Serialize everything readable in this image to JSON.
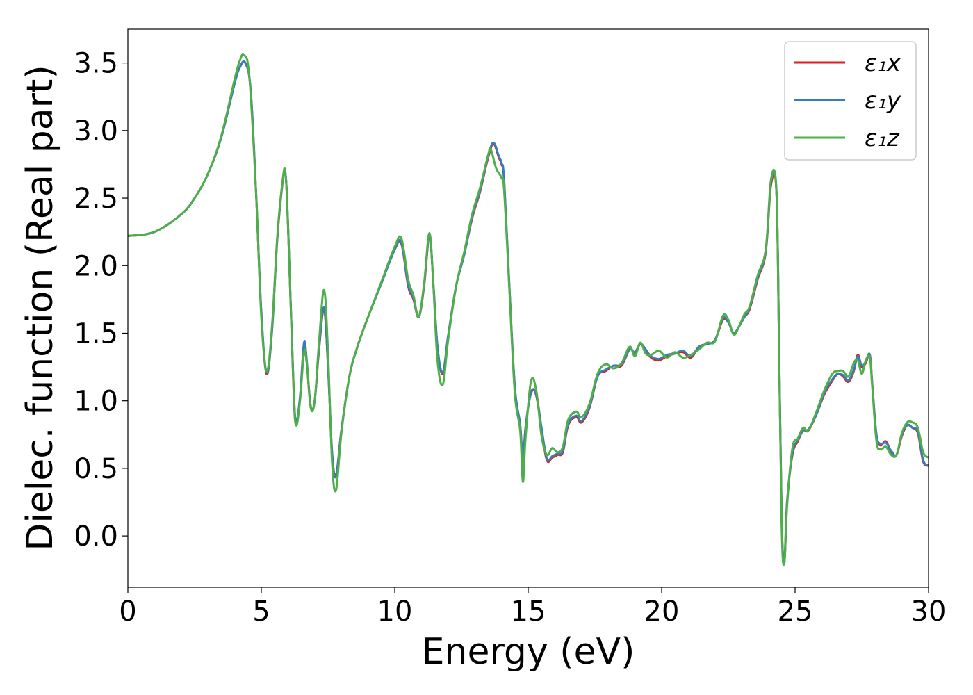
{
  "chart_data": {
    "type": "line",
    "title": "",
    "xlabel": "Energy (eV)",
    "ylabel": "Dielec. function (Real part)",
    "xlim": [
      0,
      30
    ],
    "ylim": [
      -0.38,
      3.75
    ],
    "xticks": [
      0,
      5,
      10,
      15,
      20,
      25,
      30
    ],
    "xtick_labels": [
      "0",
      "5",
      "10",
      "15",
      "20",
      "25",
      "30"
    ],
    "yticks": [
      0.0,
      0.5,
      1.0,
      1.5,
      2.0,
      2.5,
      3.0,
      3.5
    ],
    "ytick_labels": [
      "0.0",
      "0.5",
      "1.0",
      "1.5",
      "2.0",
      "2.5",
      "3.0",
      "3.5"
    ],
    "grid": false,
    "legend_position": "top-right",
    "series": [
      {
        "name": "ε₁x",
        "color": "#e41a1c",
        "x": [
          0,
          1,
          2,
          2.5,
          3,
          3.5,
          4,
          4.2,
          4.4,
          4.6,
          4.8,
          5.0,
          5.2,
          5.4,
          5.6,
          5.8,
          5.9,
          6.0,
          6.2,
          6.3,
          6.45,
          6.6,
          6.7,
          6.85,
          7.0,
          7.15,
          7.35,
          7.5,
          7.65,
          7.8,
          8.0,
          8.3,
          8.6,
          9.0,
          9.5,
          10.0,
          10.25,
          10.5,
          10.7,
          10.9,
          11.1,
          11.3,
          11.45,
          11.6,
          11.8,
          12.0,
          12.3,
          12.6,
          12.9,
          13.2,
          13.5,
          13.7,
          13.9,
          14.0,
          14.1,
          14.3,
          14.5,
          14.7,
          14.8,
          14.9,
          15.1,
          15.3,
          15.5,
          15.7,
          15.9,
          16.1,
          16.3,
          16.5,
          16.8,
          17.0,
          17.3,
          17.6,
          17.9,
          18.2,
          18.5,
          18.8,
          19.0,
          19.2,
          19.4,
          19.6,
          19.9,
          20.2,
          20.5,
          20.8,
          21.1,
          21.4,
          21.7,
          22.0,
          22.3,
          22.5,
          22.7,
          22.9,
          23.1,
          23.3,
          23.6,
          23.9,
          24.1,
          24.3,
          24.4,
          24.5,
          24.6,
          24.7,
          24.9,
          25.1,
          25.3,
          25.5,
          25.8,
          26.1,
          26.4,
          26.6,
          26.8,
          27.0,
          27.2,
          27.35,
          27.5,
          27.65,
          27.8,
          27.9,
          28.05,
          28.2,
          28.4,
          28.6,
          28.8,
          29.0,
          29.2,
          29.4,
          29.6,
          29.8,
          30.0
        ],
        "y": [
          2.22,
          2.25,
          2.38,
          2.5,
          2.68,
          2.95,
          3.35,
          3.47,
          3.5,
          3.3,
          2.55,
          1.65,
          1.2,
          1.52,
          2.2,
          2.62,
          2.69,
          2.3,
          1.15,
          0.84,
          1.02,
          1.42,
          1.3,
          0.96,
          1.0,
          1.35,
          1.68,
          1.25,
          0.62,
          0.45,
          0.78,
          1.18,
          1.4,
          1.62,
          1.87,
          2.12,
          2.16,
          1.85,
          1.75,
          1.62,
          1.85,
          2.22,
          1.85,
          1.4,
          1.2,
          1.48,
          1.85,
          2.08,
          2.35,
          2.55,
          2.8,
          2.9,
          2.8,
          2.75,
          2.62,
          1.82,
          1.1,
          0.82,
          0.55,
          0.8,
          1.06,
          1.04,
          0.78,
          0.56,
          0.58,
          0.6,
          0.62,
          0.82,
          0.88,
          0.84,
          0.95,
          1.18,
          1.22,
          1.26,
          1.26,
          1.38,
          1.35,
          1.42,
          1.38,
          1.32,
          1.3,
          1.33,
          1.35,
          1.36,
          1.32,
          1.4,
          1.42,
          1.45,
          1.6,
          1.58,
          1.5,
          1.55,
          1.62,
          1.68,
          1.9,
          2.1,
          2.6,
          2.55,
          1.4,
          0.1,
          -0.18,
          0.25,
          0.6,
          0.7,
          0.78,
          0.78,
          0.9,
          1.05,
          1.15,
          1.2,
          1.18,
          1.14,
          1.22,
          1.34,
          1.25,
          1.28,
          1.34,
          1.1,
          0.74,
          0.67,
          0.7,
          0.62,
          0.6,
          0.74,
          0.82,
          0.8,
          0.76,
          0.55,
          0.52
        ]
      },
      {
        "name": "ε₁y",
        "color": "#377eb8",
        "x": [
          0,
          1,
          2,
          2.5,
          3,
          3.5,
          4,
          4.2,
          4.4,
          4.6,
          4.8,
          5.0,
          5.2,
          5.4,
          5.6,
          5.8,
          5.9,
          6.0,
          6.2,
          6.3,
          6.45,
          6.6,
          6.7,
          6.85,
          7.0,
          7.15,
          7.35,
          7.5,
          7.65,
          7.8,
          8.0,
          8.3,
          8.6,
          9.0,
          9.5,
          10.0,
          10.25,
          10.5,
          10.7,
          10.9,
          11.1,
          11.3,
          11.45,
          11.6,
          11.8,
          12.0,
          12.3,
          12.6,
          12.9,
          13.2,
          13.5,
          13.7,
          13.9,
          14.0,
          14.1,
          14.3,
          14.5,
          14.7,
          14.8,
          14.9,
          15.1,
          15.3,
          15.5,
          15.7,
          15.9,
          16.1,
          16.3,
          16.5,
          16.8,
          17.0,
          17.3,
          17.6,
          17.9,
          18.2,
          18.5,
          18.8,
          19.0,
          19.2,
          19.4,
          19.6,
          19.9,
          20.2,
          20.5,
          20.8,
          21.1,
          21.4,
          21.7,
          22.0,
          22.3,
          22.5,
          22.7,
          22.9,
          23.1,
          23.3,
          23.6,
          23.9,
          24.1,
          24.3,
          24.4,
          24.5,
          24.6,
          24.7,
          24.9,
          25.1,
          25.3,
          25.5,
          25.8,
          26.1,
          26.4,
          26.6,
          26.8,
          27.0,
          27.2,
          27.35,
          27.5,
          27.65,
          27.8,
          27.9,
          28.05,
          28.2,
          28.4,
          28.6,
          28.8,
          29.0,
          29.2,
          29.4,
          29.6,
          29.8,
          30.0
        ],
        "y": [
          2.22,
          2.25,
          2.38,
          2.5,
          2.68,
          2.95,
          3.35,
          3.47,
          3.5,
          3.3,
          2.56,
          1.66,
          1.21,
          1.52,
          2.21,
          2.63,
          2.69,
          2.31,
          1.15,
          0.85,
          1.03,
          1.43,
          1.3,
          0.96,
          1.0,
          1.36,
          1.69,
          1.25,
          0.62,
          0.44,
          0.78,
          1.18,
          1.4,
          1.62,
          1.87,
          2.12,
          2.17,
          1.86,
          1.76,
          1.62,
          1.86,
          2.22,
          1.86,
          1.4,
          1.21,
          1.48,
          1.85,
          2.08,
          2.36,
          2.56,
          2.81,
          2.91,
          2.81,
          2.76,
          2.63,
          1.83,
          1.1,
          0.82,
          0.54,
          0.8,
          1.05,
          1.05,
          0.8,
          0.57,
          0.59,
          0.61,
          0.63,
          0.83,
          0.89,
          0.85,
          0.96,
          1.18,
          1.23,
          1.26,
          1.27,
          1.38,
          1.36,
          1.42,
          1.38,
          1.33,
          1.31,
          1.34,
          1.35,
          1.37,
          1.33,
          1.4,
          1.42,
          1.45,
          1.61,
          1.58,
          1.5,
          1.55,
          1.62,
          1.69,
          1.91,
          2.11,
          2.62,
          2.56,
          1.41,
          0.1,
          -0.18,
          0.25,
          0.61,
          0.71,
          0.78,
          0.79,
          0.9,
          1.06,
          1.16,
          1.2,
          1.19,
          1.15,
          1.23,
          1.33,
          1.26,
          1.29,
          1.34,
          1.1,
          0.75,
          0.68,
          0.69,
          0.63,
          0.6,
          0.75,
          0.82,
          0.8,
          0.77,
          0.56,
          0.52
        ]
      },
      {
        "name": "ε₁z",
        "color": "#4daf4a",
        "x": [
          0,
          1,
          2,
          2.5,
          3,
          3.5,
          4,
          4.2,
          4.35,
          4.55,
          4.8,
          5.0,
          5.2,
          5.4,
          5.6,
          5.8,
          5.9,
          6.0,
          6.2,
          6.3,
          6.45,
          6.6,
          6.7,
          6.85,
          7.0,
          7.15,
          7.35,
          7.5,
          7.65,
          7.8,
          8.0,
          8.3,
          8.6,
          9.0,
          9.5,
          10.0,
          10.25,
          10.5,
          10.7,
          10.9,
          11.1,
          11.3,
          11.45,
          11.6,
          11.8,
          12.0,
          12.3,
          12.6,
          12.9,
          13.2,
          13.5,
          13.6,
          13.8,
          14.0,
          14.1,
          14.3,
          14.5,
          14.7,
          14.8,
          14.9,
          15.1,
          15.3,
          15.5,
          15.7,
          15.9,
          16.1,
          16.3,
          16.5,
          16.8,
          17.0,
          17.3,
          17.6,
          17.9,
          18.2,
          18.5,
          18.8,
          19.0,
          19.2,
          19.4,
          19.6,
          19.9,
          20.2,
          20.5,
          20.8,
          21.1,
          21.4,
          21.7,
          22.0,
          22.3,
          22.5,
          22.7,
          22.9,
          23.1,
          23.3,
          23.6,
          23.9,
          24.1,
          24.3,
          24.4,
          24.5,
          24.6,
          24.7,
          24.9,
          25.1,
          25.3,
          25.5,
          25.8,
          26.1,
          26.4,
          26.6,
          26.8,
          27.0,
          27.2,
          27.35,
          27.5,
          27.65,
          27.8,
          27.9,
          28.05,
          28.2,
          28.4,
          28.6,
          28.8,
          29.0,
          29.2,
          29.4,
          29.6,
          29.8,
          30.0
        ],
        "y": [
          2.22,
          2.25,
          2.38,
          2.5,
          2.68,
          2.96,
          3.38,
          3.52,
          3.56,
          3.4,
          2.55,
          1.62,
          1.22,
          1.55,
          2.22,
          2.63,
          2.69,
          2.3,
          1.12,
          0.82,
          1.0,
          1.36,
          1.28,
          0.95,
          1.0,
          1.4,
          1.82,
          1.35,
          0.55,
          0.34,
          0.76,
          1.18,
          1.4,
          1.62,
          1.88,
          2.14,
          2.2,
          1.9,
          1.78,
          1.62,
          1.87,
          2.24,
          1.84,
          1.3,
          1.12,
          1.45,
          1.85,
          2.1,
          2.38,
          2.58,
          2.82,
          2.86,
          2.72,
          2.65,
          2.55,
          1.8,
          1.05,
          0.78,
          0.4,
          0.72,
          1.14,
          1.08,
          0.74,
          0.6,
          0.65,
          0.62,
          0.66,
          0.86,
          0.92,
          0.88,
          0.98,
          1.2,
          1.27,
          1.24,
          1.28,
          1.4,
          1.33,
          1.43,
          1.35,
          1.34,
          1.37,
          1.32,
          1.36,
          1.32,
          1.34,
          1.38,
          1.43,
          1.44,
          1.63,
          1.6,
          1.49,
          1.55,
          1.64,
          1.7,
          1.93,
          2.12,
          2.64,
          2.55,
          1.38,
          0.05,
          -0.2,
          0.22,
          0.65,
          0.72,
          0.8,
          0.78,
          0.92,
          1.08,
          1.2,
          1.22,
          1.22,
          1.18,
          1.28,
          1.3,
          1.2,
          1.3,
          1.32,
          1.08,
          0.7,
          0.64,
          0.66,
          0.6,
          0.6,
          0.76,
          0.84,
          0.84,
          0.8,
          0.62,
          0.58
        ]
      }
    ]
  }
}
